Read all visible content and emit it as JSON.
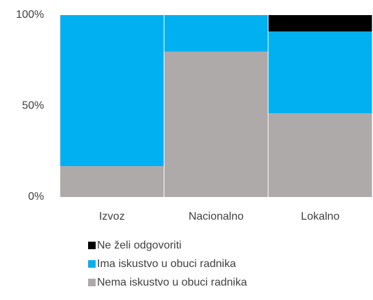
{
  "chart_data": {
    "type": "stacked_bar_100",
    "categories": [
      "Izvoz",
      "Nacionalno",
      "Lokalno"
    ],
    "series": [
      {
        "name": "Nema iskustvo u obuci radnika",
        "color": "#aeaaaa",
        "values": [
          17,
          80,
          46
        ]
      },
      {
        "name": "Ima iskustvo u obuci radnika",
        "color": "#00b0f0",
        "values": [
          83,
          20,
          45
        ]
      },
      {
        "name": "Ne želi odgovoriti",
        "color": "#000000",
        "values": [
          0,
          0,
          9
        ]
      }
    ],
    "ylim": [
      0,
      100
    ],
    "yticks": [
      {
        "value": 0,
        "label": "0%"
      },
      {
        "value": 50,
        "label": "50%"
      },
      {
        "value": 100,
        "label": "100%"
      }
    ],
    "grid": false
  }
}
